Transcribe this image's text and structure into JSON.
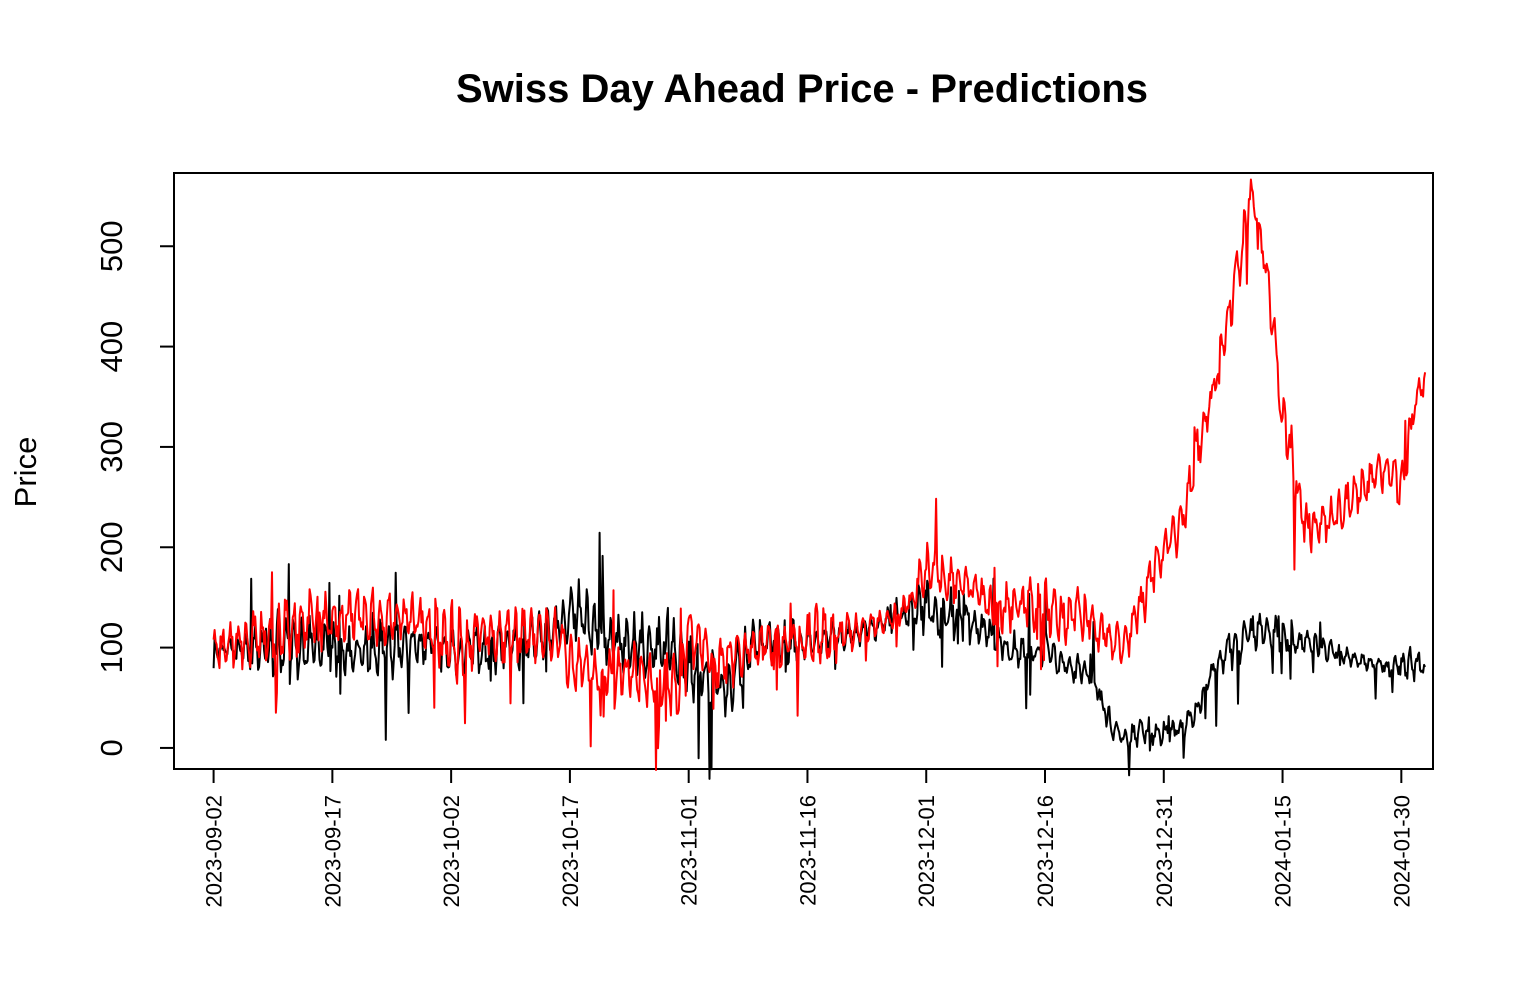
{
  "chart_data": {
    "type": "line",
    "title": "Swiss Day Ahead Price - Predictions",
    "xlabel": "",
    "ylabel": "Price",
    "x_tick_labels": [
      "2023-09-02",
      "2023-09-17",
      "2023-10-02",
      "2023-10-17",
      "2023-11-01",
      "2023-11-16",
      "2023-12-01",
      "2023-12-16",
      "2023-12-31",
      "2024-01-15",
      "2024-01-30"
    ],
    "y_tick_labels": [
      "0",
      "100",
      "200",
      "300",
      "400",
      "500"
    ],
    "xlim": [
      "2023-08-28",
      "2024-02-03"
    ],
    "ylim": [
      -21,
      573
    ],
    "grid": false,
    "legend": "none",
    "series": [
      {
        "color": "#000000",
        "dates": [
          "2023-09-02",
          "2023-09-05",
          "2023-09-08",
          "2023-09-11",
          "2023-09-13",
          "2023-09-15",
          "2023-09-17",
          "2023-09-19",
          "2023-09-21",
          "2023-09-23",
          "2023-09-25",
          "2023-09-27",
          "2023-09-29",
          "2023-10-02",
          "2023-10-04",
          "2023-10-06",
          "2023-10-08",
          "2023-10-10",
          "2023-10-12",
          "2023-10-14",
          "2023-10-16",
          "2023-10-17",
          "2023-10-19",
          "2023-10-21",
          "2023-10-23",
          "2023-10-25",
          "2023-10-27",
          "2023-10-29",
          "2023-10-31",
          "2023-11-01",
          "2023-11-03",
          "2023-11-04",
          "2023-11-06",
          "2023-11-08",
          "2023-11-10",
          "2023-11-13",
          "2023-11-16",
          "2023-11-19",
          "2023-11-22",
          "2023-11-25",
          "2023-11-28",
          "2023-12-01",
          "2023-12-03",
          "2023-12-05",
          "2023-12-07",
          "2023-12-09",
          "2023-12-11",
          "2023-12-13",
          "2023-12-16",
          "2023-12-18",
          "2023-12-20",
          "2023-12-22",
          "2023-12-24",
          "2023-12-26",
          "2023-12-28",
          "2023-12-31",
          "2024-01-02",
          "2024-01-04",
          "2024-01-06",
          "2024-01-08",
          "2024-01-10",
          "2024-01-12",
          "2024-01-15",
          "2024-01-18",
          "2024-01-21",
          "2024-01-24",
          "2024-01-27",
          "2024-01-29",
          "2024-01-30",
          "2024-02-01",
          "2024-02-02"
        ],
        "values": [
          100,
          96,
          98,
          101,
          99,
          103,
          97,
          92,
          99,
          101,
          97,
          104,
          102,
          95,
          97,
          99,
          101,
          104,
          113,
          119,
          127,
          145,
          124,
          114,
          106,
          101,
          99,
          96,
          87,
          79,
          71,
          64,
          57,
          89,
          104,
          107,
          106,
          110,
          113,
          122,
          132,
          144,
          132,
          129,
          123,
          113,
          100,
          97,
          99,
          86,
          77,
          70,
          28,
          10,
          17,
          16,
          19,
          34,
          73,
          94,
          108,
          116,
          113,
          104,
          97,
          89,
          83,
          79,
          82,
          84,
          80
        ],
        "amplitude": [
          10,
          22,
          35,
          40,
          35,
          35,
          30,
          30,
          35,
          35,
          30,
          25,
          25,
          30,
          25,
          30,
          35,
          30,
          30,
          30,
          30,
          40,
          35,
          35,
          35,
          40,
          40,
          40,
          40,
          40,
          40,
          40,
          40,
          35,
          30,
          30,
          20,
          20,
          15,
          15,
          15,
          35,
          30,
          30,
          25,
          25,
          20,
          20,
          18,
          18,
          18,
          18,
          18,
          15,
          15,
          15,
          15,
          15,
          18,
          22,
          22,
          22,
          20,
          18,
          12,
          10,
          10,
          15,
          20,
          18,
          10
        ]
      },
      {
        "color": "#ff0000",
        "dates": [
          "2023-09-02",
          "2023-09-05",
          "2023-09-08",
          "2023-09-11",
          "2023-09-13",
          "2023-09-15",
          "2023-09-17",
          "2023-09-19",
          "2023-09-21",
          "2023-09-23",
          "2023-09-25",
          "2023-09-27",
          "2023-09-29",
          "2023-10-02",
          "2023-10-04",
          "2023-10-06",
          "2023-10-08",
          "2023-10-10",
          "2023-10-12",
          "2023-10-14",
          "2023-10-16",
          "2023-10-17",
          "2023-10-19",
          "2023-10-21",
          "2023-10-23",
          "2023-10-25",
          "2023-10-27",
          "2023-10-29",
          "2023-10-31",
          "2023-11-01",
          "2023-11-03",
          "2023-11-04",
          "2023-11-06",
          "2023-11-08",
          "2023-11-10",
          "2023-11-13",
          "2023-11-16",
          "2023-11-19",
          "2023-11-22",
          "2023-11-25",
          "2023-11-28",
          "2023-12-01",
          "2023-12-03",
          "2023-12-05",
          "2023-12-07",
          "2023-12-09",
          "2023-12-11",
          "2023-12-13",
          "2023-12-16",
          "2023-12-18",
          "2023-12-20",
          "2023-12-22",
          "2023-12-24",
          "2023-12-26",
          "2023-12-28",
          "2023-12-31",
          "2024-01-02",
          "2024-01-04",
          "2024-01-06",
          "2024-01-08",
          "2024-01-10",
          "2024-01-11",
          "2024-01-12",
          "2024-01-13",
          "2024-01-15",
          "2024-01-18",
          "2024-01-21",
          "2024-01-24",
          "2024-01-27",
          "2024-01-29",
          "2024-01-30",
          "2024-02-01",
          "2024-02-02"
        ],
        "values": [
          95,
          105,
          115,
          120,
          120,
          130,
          125,
          135,
          130,
          128,
          130,
          126,
          124,
          105,
          100,
          115,
          110,
          118,
          112,
          116,
          112,
          80,
          80,
          75,
          72,
          70,
          72,
          65,
          60,
          110,
          105,
          90,
          85,
          95,
          100,
          102,
          108,
          112,
          118,
          125,
          135,
          175,
          170,
          165,
          160,
          140,
          135,
          145,
          140,
          130,
          135,
          125,
          110,
          100,
          140,
          200,
          215,
          285,
          350,
          425,
          505,
          560,
          520,
          480,
          330,
          220,
          225,
          250,
          275,
          270,
          260,
          355,
          365
        ],
        "amplitude": [
          30,
          30,
          35,
          40,
          35,
          35,
          30,
          35,
          35,
          30,
          30,
          30,
          30,
          55,
          35,
          30,
          35,
          30,
          30,
          30,
          30,
          35,
          30,
          30,
          35,
          40,
          40,
          40,
          40,
          40,
          35,
          35,
          35,
          30,
          30,
          30,
          35,
          35,
          20,
          15,
          15,
          30,
          30,
          25,
          25,
          25,
          30,
          30,
          30,
          30,
          30,
          30,
          25,
          20,
          30,
          25,
          30,
          30,
          30,
          30,
          30,
          15,
          25,
          30,
          35,
          30,
          25,
          25,
          25,
          25,
          30,
          20,
          15
        ]
      }
    ]
  }
}
